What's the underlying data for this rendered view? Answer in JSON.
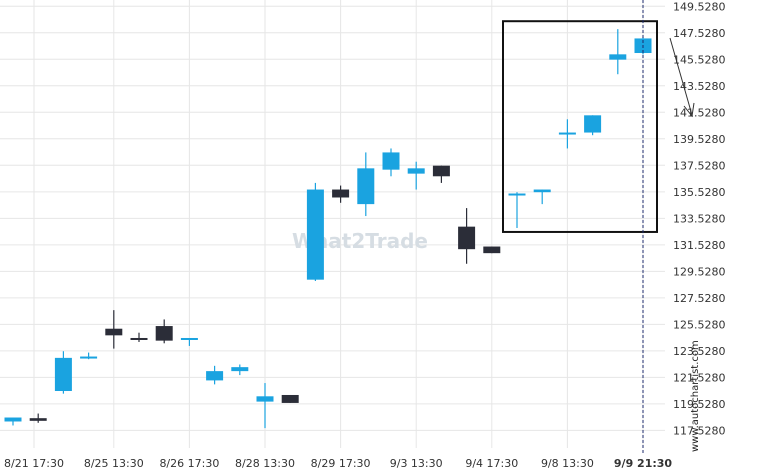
{
  "chart_data": {
    "type": "candlestick",
    "y_ticks": [
      "149.5280",
      "147.5280",
      "145.5280",
      "143.5280",
      "141.5280",
      "139.5280",
      "137.5280",
      "135.5280",
      "133.5280",
      "131.5280",
      "129.5280",
      "127.5280",
      "125.5280",
      "123.5280",
      "121.5280",
      "119.5280",
      "117.5280"
    ],
    "ylim": [
      116.2,
      150.0
    ],
    "x_ticks": [
      "8/21 17:30",
      "8/25 13:30",
      "8/26 17:30",
      "8/28 13:30",
      "8/29 17:30",
      "9/3 13:30",
      "9/4 17:30",
      "9/8 13:30",
      "9/9 21:30"
    ],
    "grid": true,
    "up_color": "#1aa3e0",
    "down_color": "#2b2d38",
    "candles": [
      {
        "o": 118.2,
        "h": 118.5,
        "l": 117.9,
        "c": 118.5
      },
      {
        "o": 118.45,
        "h": 118.8,
        "l": 118.1,
        "c": 118.25
      },
      {
        "o": 120.5,
        "h": 123.5,
        "l": 120.3,
        "c": 123.0
      },
      {
        "o": 123.1,
        "h": 123.4,
        "l": 122.9,
        "c": 123.1
      },
      {
        "o": 125.2,
        "h": 126.6,
        "l": 123.7,
        "c": 124.7
      },
      {
        "o": 124.5,
        "h": 124.9,
        "l": 124.2,
        "c": 124.35
      },
      {
        "o": 125.4,
        "h": 125.9,
        "l": 124.1,
        "c": 124.3
      },
      {
        "o": 124.4,
        "h": 124.5,
        "l": 123.9,
        "c": 124.5
      },
      {
        "o": 121.3,
        "h": 122.4,
        "l": 121.0,
        "c": 122.0
      },
      {
        "o": 122.0,
        "h": 122.5,
        "l": 121.7,
        "c": 122.3
      },
      {
        "o": 119.7,
        "h": 121.1,
        "l": 117.7,
        "c": 120.1
      },
      {
        "o": 120.2,
        "h": 120.2,
        "l": 119.6,
        "c": 119.6
      },
      {
        "o": 128.9,
        "h": 136.2,
        "l": 128.8,
        "c": 135.7
      },
      {
        "o": 135.7,
        "h": 136.0,
        "l": 134.7,
        "c": 135.1
      },
      {
        "o": 134.6,
        "h": 138.5,
        "l": 133.7,
        "c": 137.3
      },
      {
        "o": 137.2,
        "h": 138.8,
        "l": 136.7,
        "c": 138.5
      },
      {
        "o": 136.9,
        "h": 137.8,
        "l": 135.7,
        "c": 137.3
      },
      {
        "o": 137.5,
        "h": 137.5,
        "l": 136.2,
        "c": 136.7
      },
      {
        "o": 132.9,
        "h": 134.3,
        "l": 130.1,
        "c": 131.2
      },
      {
        "o": 131.4,
        "h": 131.4,
        "l": 130.9,
        "c": 130.9
      },
      {
        "o": 135.3,
        "h": 135.5,
        "l": 132.8,
        "c": 135.4
      },
      {
        "o": 135.5,
        "h": 135.7,
        "l": 134.6,
        "c": 135.7
      },
      {
        "o": 139.9,
        "h": 141.0,
        "l": 138.8,
        "c": 140.0
      },
      {
        "o": 140.0,
        "h": 141.3,
        "l": 139.8,
        "c": 141.3
      },
      {
        "o": 145.5,
        "h": 147.8,
        "l": 144.4,
        "c": 145.9
      },
      {
        "o": 146.0,
        "h": 147.2,
        "l": 145.9,
        "c": 147.1
      }
    ],
    "annotations": {
      "box": {
        "from_index": 20,
        "to_index": 25,
        "y_top": 148.4,
        "y_bottom": 132.5
      },
      "arrow": "down",
      "cursor_line_index": 25
    }
  },
  "watermark": "What2Trade",
  "credit": "www.autochartist.com"
}
